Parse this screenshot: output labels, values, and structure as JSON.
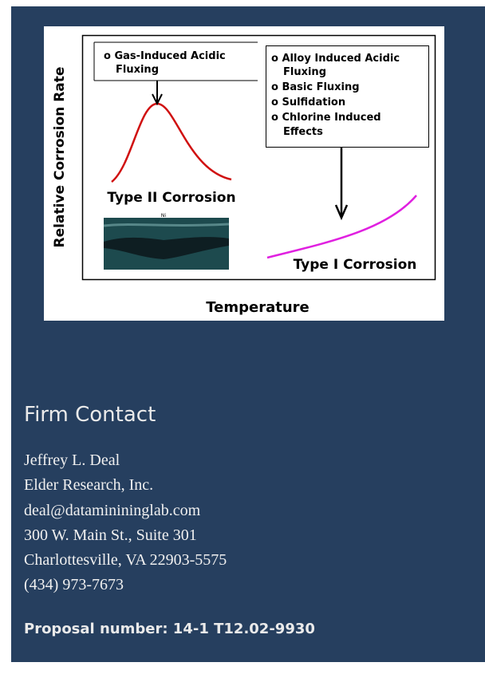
{
  "figure": {
    "y_axis_label": "Relative Corrosion Rate",
    "x_axis_label": "Temperature",
    "left_box": [
      "o Gas-Induced Acidic",
      "Fluxing"
    ],
    "right_box": [
      "o Alloy Induced Acidic",
      "Fluxing",
      "o Basic Fluxing",
      "o Sulfidation",
      "o Chlorine Induced",
      "Effects"
    ],
    "type2_label": "Type II Corrosion",
    "type1_label": "Type I Corrosion",
    "micrograph_label": "Ni"
  },
  "contact": {
    "heading": "Firm Contact",
    "lines": [
      "Jeffrey L. Deal",
      "Elder Research, Inc.",
      "deal@dataminininglab.com",
      "300 W. Main St., Suite 301",
      "Charlottesville, VA 22903-5575",
      "(434) 973-7673"
    ]
  },
  "proposal": "Proposal number: 14-1 T12.02-9930"
}
